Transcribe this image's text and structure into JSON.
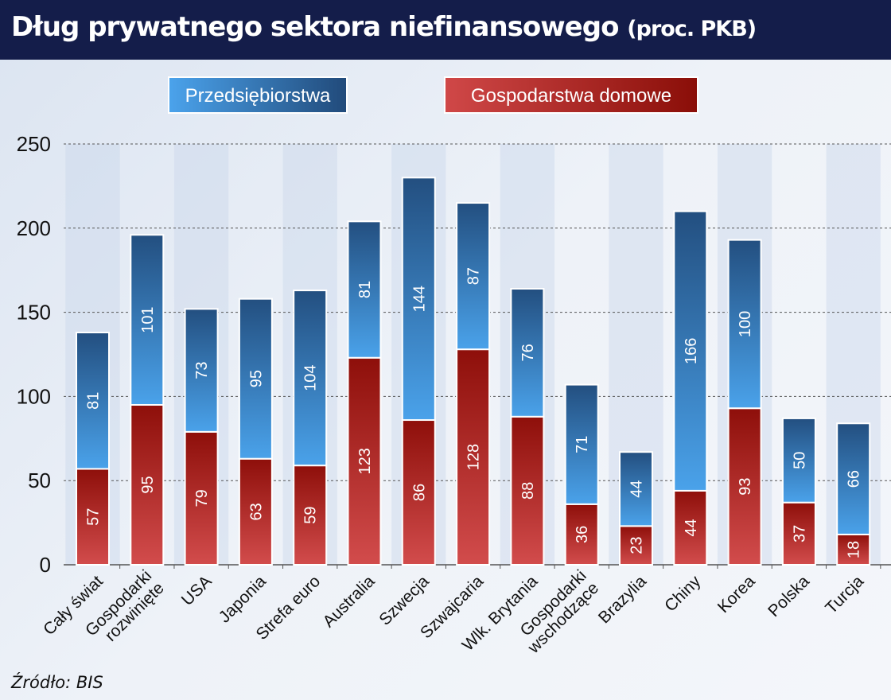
{
  "chart_data": {
    "type": "bar",
    "stacked": true,
    "title": "Dług prywatnego sektora niefinansowego",
    "subtitle": "(proc. PKB)",
    "xlabel": "",
    "ylabel": "",
    "ylim": [
      0,
      250
    ],
    "yticks": [
      0,
      50,
      100,
      150,
      200,
      250
    ],
    "grid": true,
    "legend_placement": "top",
    "categories": [
      "Cały świat",
      "Gospodarki rozwinięte",
      "USA",
      "Japonia",
      "Strefa euro",
      "Australia",
      "Szwecja",
      "Szwajcaria",
      "Wlk. Brytania",
      "Gospodarki wschodzące",
      "Brazylia",
      "Chiny",
      "Korea",
      "Polska",
      "Turcja"
    ],
    "series": [
      {
        "name": "Gospodarstwa domowe",
        "color": "#b52a2a",
        "values": [
          57,
          95,
          79,
          63,
          59,
          123,
          86,
          128,
          88,
          36,
          23,
          44,
          93,
          37,
          18
        ]
      },
      {
        "name": "Przedsiębiorstwa",
        "color": "#2f6aa6",
        "values": [
          81,
          101,
          73,
          95,
          104,
          81,
          144,
          87,
          76,
          71,
          44,
          166,
          100,
          50,
          66
        ]
      }
    ],
    "source": "Źródło: BIS"
  }
}
